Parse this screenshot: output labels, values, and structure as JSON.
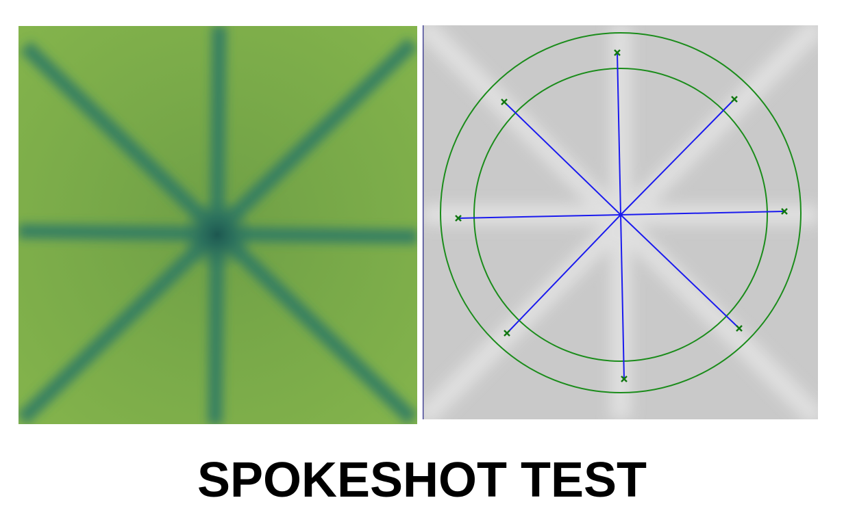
{
  "title": "SPOKESHOT TEST",
  "film_image": {
    "description_name": "radiochromic-film-spokeshot",
    "spoke_count": 8,
    "colors": {
      "film_base": "#7cae48",
      "film_light": "#88b84e",
      "spoke": "#2f7a64",
      "center": "#1f5f55"
    }
  },
  "analysis_image": {
    "description_name": "spokeshot-analysis-overlay",
    "spoke_count": 8,
    "colors": {
      "background": "#c9c9c9",
      "background_light": "#d8d8d8",
      "circle": "#1a8c1a",
      "spoke_line": "#1a1aee",
      "marker": "#117711"
    }
  }
}
